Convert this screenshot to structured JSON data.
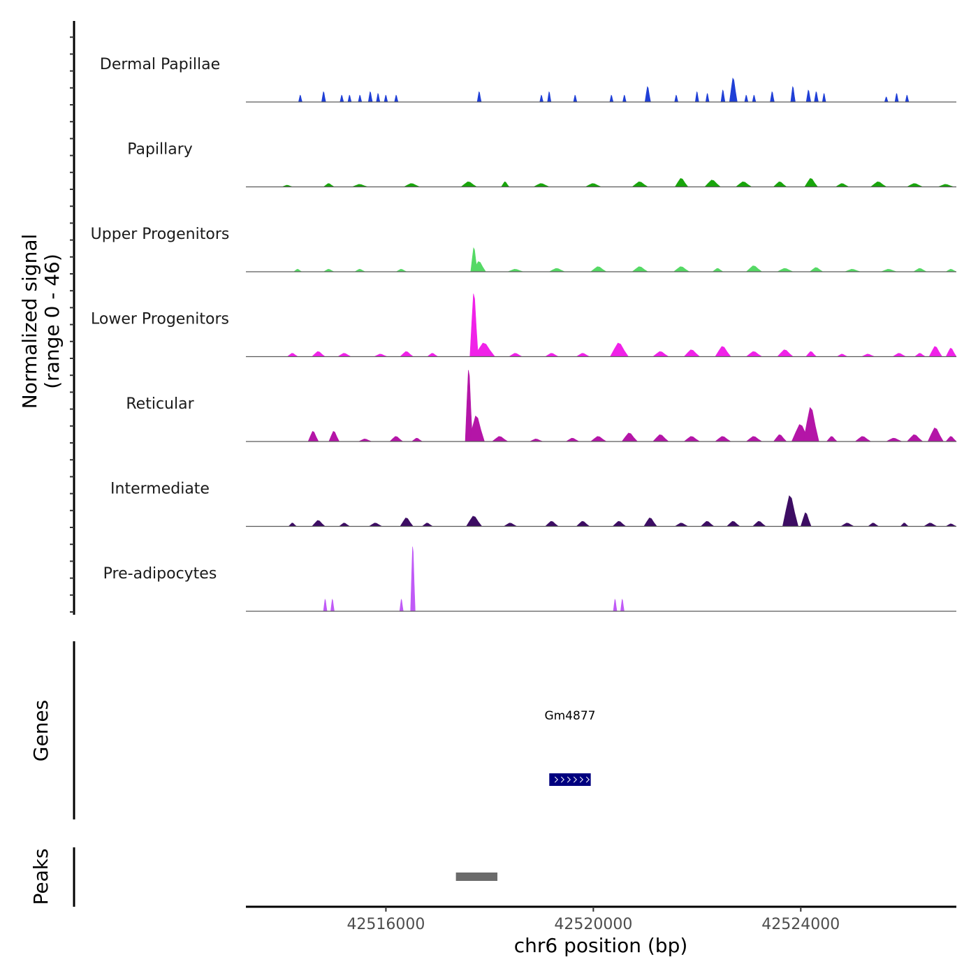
{
  "chart_data": {
    "type": "area",
    "title": "",
    "chromosome": "chr6",
    "xlabel": "chr6 position (bp)",
    "ylabel": [
      "Normalized signal",
      "(range 0 - 46)"
    ],
    "y_range": [
      0,
      46
    ],
    "xlim": [
      42513300,
      42527000
    ],
    "x_ticks": [
      42516000,
      42520000,
      42524000
    ],
    "x_tick_labels": [
      "42516000",
      "42520000",
      "42524000"
    ],
    "track_names": {
      "genes": "Genes",
      "peaks": "Peaks"
    },
    "tracks": [
      {
        "name": "Dermal Papillae",
        "color": "#1f3fd6",
        "peaks": [
          {
            "x": 42514350,
            "y": 4,
            "w": 70
          },
          {
            "x": 42514800,
            "y": 6,
            "w": 80
          },
          {
            "x": 42515150,
            "y": 4,
            "w": 70
          },
          {
            "x": 42515300,
            "y": 4,
            "w": 60
          },
          {
            "x": 42515500,
            "y": 4,
            "w": 60
          },
          {
            "x": 42515700,
            "y": 6,
            "w": 80
          },
          {
            "x": 42515850,
            "y": 5,
            "w": 70
          },
          {
            "x": 42516000,
            "y": 4,
            "w": 60
          },
          {
            "x": 42516200,
            "y": 4,
            "w": 70
          },
          {
            "x": 42517800,
            "y": 6,
            "w": 80
          },
          {
            "x": 42519000,
            "y": 4,
            "w": 60
          },
          {
            "x": 42519150,
            "y": 6,
            "w": 70
          },
          {
            "x": 42519650,
            "y": 4,
            "w": 60
          },
          {
            "x": 42520350,
            "y": 4,
            "w": 60
          },
          {
            "x": 42520600,
            "y": 4,
            "w": 60
          },
          {
            "x": 42521050,
            "y": 9,
            "w": 110
          },
          {
            "x": 42521600,
            "y": 4,
            "w": 60
          },
          {
            "x": 42522000,
            "y": 6,
            "w": 70
          },
          {
            "x": 42522200,
            "y": 5,
            "w": 60
          },
          {
            "x": 42522500,
            "y": 7,
            "w": 80
          },
          {
            "x": 42522700,
            "y": 14,
            "w": 150
          },
          {
            "x": 42522950,
            "y": 4,
            "w": 60
          },
          {
            "x": 42523100,
            "y": 4,
            "w": 60
          },
          {
            "x": 42523450,
            "y": 6,
            "w": 80
          },
          {
            "x": 42523850,
            "y": 9,
            "w": 90
          },
          {
            "x": 42524150,
            "y": 7,
            "w": 90
          },
          {
            "x": 42524300,
            "y": 6,
            "w": 80
          },
          {
            "x": 42524450,
            "y": 5,
            "w": 60
          },
          {
            "x": 42525650,
            "y": 3,
            "w": 60
          },
          {
            "x": 42525850,
            "y": 5,
            "w": 70
          },
          {
            "x": 42526050,
            "y": 4,
            "w": 60
          }
        ]
      },
      {
        "name": "Papillary",
        "color": "#19a50c",
        "peaks": [
          {
            "x": 42514100,
            "y": 1,
            "w": 200
          },
          {
            "x": 42514900,
            "y": 2,
            "w": 200
          },
          {
            "x": 42515500,
            "y": 1.5,
            "w": 300
          },
          {
            "x": 42516500,
            "y": 2,
            "w": 300
          },
          {
            "x": 42517600,
            "y": 3,
            "w": 300
          },
          {
            "x": 42518300,
            "y": 3,
            "w": 150
          },
          {
            "x": 42519000,
            "y": 2,
            "w": 300
          },
          {
            "x": 42520000,
            "y": 2,
            "w": 300
          },
          {
            "x": 42520900,
            "y": 3,
            "w": 300
          },
          {
            "x": 42521700,
            "y": 5,
            "w": 250
          },
          {
            "x": 42522300,
            "y": 4,
            "w": 300
          },
          {
            "x": 42522900,
            "y": 3,
            "w": 300
          },
          {
            "x": 42523600,
            "y": 3,
            "w": 250
          },
          {
            "x": 42524200,
            "y": 5,
            "w": 250
          },
          {
            "x": 42524800,
            "y": 2,
            "w": 250
          },
          {
            "x": 42525500,
            "y": 3,
            "w": 300
          },
          {
            "x": 42526200,
            "y": 2,
            "w": 300
          },
          {
            "x": 42526800,
            "y": 1.5,
            "w": 300
          }
        ]
      },
      {
        "name": "Upper Progenitors",
        "color": "#55d965",
        "peaks": [
          {
            "x": 42514300,
            "y": 1.5,
            "w": 150
          },
          {
            "x": 42514900,
            "y": 1.5,
            "w": 200
          },
          {
            "x": 42515500,
            "y": 1.5,
            "w": 200
          },
          {
            "x": 42516300,
            "y": 1.5,
            "w": 200
          },
          {
            "x": 42517700,
            "y": 14,
            "w": 130
          },
          {
            "x": 42517800,
            "y": 6,
            "w": 250
          },
          {
            "x": 42518500,
            "y": 1.5,
            "w": 300
          },
          {
            "x": 42519300,
            "y": 2,
            "w": 300
          },
          {
            "x": 42520100,
            "y": 3,
            "w": 300
          },
          {
            "x": 42520900,
            "y": 3,
            "w": 300
          },
          {
            "x": 42521700,
            "y": 3,
            "w": 300
          },
          {
            "x": 42522400,
            "y": 2,
            "w": 200
          },
          {
            "x": 42523100,
            "y": 3.5,
            "w": 300
          },
          {
            "x": 42523700,
            "y": 2,
            "w": 300
          },
          {
            "x": 42524300,
            "y": 2.5,
            "w": 250
          },
          {
            "x": 42525000,
            "y": 1.5,
            "w": 300
          },
          {
            "x": 42525700,
            "y": 1.5,
            "w": 300
          },
          {
            "x": 42526300,
            "y": 2,
            "w": 250
          },
          {
            "x": 42526900,
            "y": 1.5,
            "w": 200
          }
        ]
      },
      {
        "name": "Lower Progenitors",
        "color": "#f022e8",
        "peaks": [
          {
            "x": 42514200,
            "y": 2,
            "w": 200
          },
          {
            "x": 42514700,
            "y": 3,
            "w": 250
          },
          {
            "x": 42515200,
            "y": 2,
            "w": 250
          },
          {
            "x": 42515900,
            "y": 1.5,
            "w": 250
          },
          {
            "x": 42516400,
            "y": 3,
            "w": 250
          },
          {
            "x": 42516900,
            "y": 2,
            "w": 200
          },
          {
            "x": 42517700,
            "y": 37,
            "w": 160
          },
          {
            "x": 42517900,
            "y": 8,
            "w": 400
          },
          {
            "x": 42518500,
            "y": 2,
            "w": 250
          },
          {
            "x": 42519200,
            "y": 2,
            "w": 250
          },
          {
            "x": 42519800,
            "y": 2,
            "w": 250
          },
          {
            "x": 42520500,
            "y": 8,
            "w": 350
          },
          {
            "x": 42521300,
            "y": 3,
            "w": 300
          },
          {
            "x": 42521900,
            "y": 4,
            "w": 300
          },
          {
            "x": 42522500,
            "y": 6,
            "w": 300
          },
          {
            "x": 42523100,
            "y": 3,
            "w": 300
          },
          {
            "x": 42523700,
            "y": 4,
            "w": 300
          },
          {
            "x": 42524200,
            "y": 3,
            "w": 200
          },
          {
            "x": 42524800,
            "y": 1.5,
            "w": 200
          },
          {
            "x": 42525300,
            "y": 1.5,
            "w": 250
          },
          {
            "x": 42525900,
            "y": 2,
            "w": 250
          },
          {
            "x": 42526300,
            "y": 2,
            "w": 200
          },
          {
            "x": 42526600,
            "y": 6,
            "w": 250
          },
          {
            "x": 42526900,
            "y": 5,
            "w": 200
          }
        ]
      },
      {
        "name": "Reticular",
        "color": "#b415a7",
        "peaks": [
          {
            "x": 42514600,
            "y": 6,
            "w": 200
          },
          {
            "x": 42515000,
            "y": 6,
            "w": 200
          },
          {
            "x": 42515600,
            "y": 1.5,
            "w": 250
          },
          {
            "x": 42516200,
            "y": 3,
            "w": 250
          },
          {
            "x": 42516600,
            "y": 2,
            "w": 200
          },
          {
            "x": 42517600,
            "y": 42,
            "w": 140
          },
          {
            "x": 42517750,
            "y": 15,
            "w": 300
          },
          {
            "x": 42518200,
            "y": 3,
            "w": 300
          },
          {
            "x": 42518900,
            "y": 1.5,
            "w": 250
          },
          {
            "x": 42519600,
            "y": 2,
            "w": 250
          },
          {
            "x": 42520100,
            "y": 3,
            "w": 300
          },
          {
            "x": 42520700,
            "y": 5,
            "w": 300
          },
          {
            "x": 42521300,
            "y": 4,
            "w": 300
          },
          {
            "x": 42521900,
            "y": 3,
            "w": 300
          },
          {
            "x": 42522500,
            "y": 3,
            "w": 300
          },
          {
            "x": 42523100,
            "y": 3,
            "w": 300
          },
          {
            "x": 42523600,
            "y": 4,
            "w": 250
          },
          {
            "x": 42524000,
            "y": 10,
            "w": 350
          },
          {
            "x": 42524200,
            "y": 20,
            "w": 300
          },
          {
            "x": 42524600,
            "y": 3,
            "w": 200
          },
          {
            "x": 42525200,
            "y": 3,
            "w": 300
          },
          {
            "x": 42525800,
            "y": 2,
            "w": 300
          },
          {
            "x": 42526200,
            "y": 4,
            "w": 300
          },
          {
            "x": 42526600,
            "y": 8,
            "w": 300
          },
          {
            "x": 42526900,
            "y": 3,
            "w": 200
          }
        ]
      },
      {
        "name": "Intermediate",
        "color": "#3d0d63",
        "peaks": [
          {
            "x": 42514200,
            "y": 2,
            "w": 150
          },
          {
            "x": 42514700,
            "y": 3.5,
            "w": 250
          },
          {
            "x": 42515200,
            "y": 2,
            "w": 200
          },
          {
            "x": 42515800,
            "y": 2,
            "w": 250
          },
          {
            "x": 42516400,
            "y": 5,
            "w": 250
          },
          {
            "x": 42516800,
            "y": 2,
            "w": 200
          },
          {
            "x": 42517700,
            "y": 6,
            "w": 300
          },
          {
            "x": 42518400,
            "y": 2,
            "w": 250
          },
          {
            "x": 42519200,
            "y": 3,
            "w": 250
          },
          {
            "x": 42519800,
            "y": 3,
            "w": 250
          },
          {
            "x": 42520500,
            "y": 3,
            "w": 250
          },
          {
            "x": 42521100,
            "y": 5,
            "w": 250
          },
          {
            "x": 42521700,
            "y": 2,
            "w": 250
          },
          {
            "x": 42522200,
            "y": 3,
            "w": 250
          },
          {
            "x": 42522700,
            "y": 3,
            "w": 250
          },
          {
            "x": 42523200,
            "y": 3,
            "w": 250
          },
          {
            "x": 42523800,
            "y": 18,
            "w": 300
          },
          {
            "x": 42524100,
            "y": 8,
            "w": 200
          },
          {
            "x": 42524900,
            "y": 2,
            "w": 250
          },
          {
            "x": 42525400,
            "y": 2,
            "w": 200
          },
          {
            "x": 42526000,
            "y": 2,
            "w": 150
          },
          {
            "x": 42526500,
            "y": 2,
            "w": 250
          },
          {
            "x": 42526900,
            "y": 1.5,
            "w": 200
          }
        ]
      },
      {
        "name": "Pre-adipocytes",
        "color": "#c05af7",
        "peaks": [
          {
            "x": 42514830,
            "y": 7,
            "w": 70
          },
          {
            "x": 42514970,
            "y": 7,
            "w": 70
          },
          {
            "x": 42516300,
            "y": 7,
            "w": 70
          },
          {
            "x": 42516520,
            "y": 38,
            "w": 90
          },
          {
            "x": 42520420,
            "y": 7,
            "w": 70
          },
          {
            "x": 42520560,
            "y": 7,
            "w": 70
          }
        ]
      }
    ],
    "genes": [
      {
        "name": "Gm4877",
        "start": 42519150,
        "end": 42519950,
        "color": "#00007f"
      }
    ],
    "peaks": [
      {
        "start": 42517350,
        "end": 42518150,
        "color": "#6b6b6b"
      }
    ]
  }
}
